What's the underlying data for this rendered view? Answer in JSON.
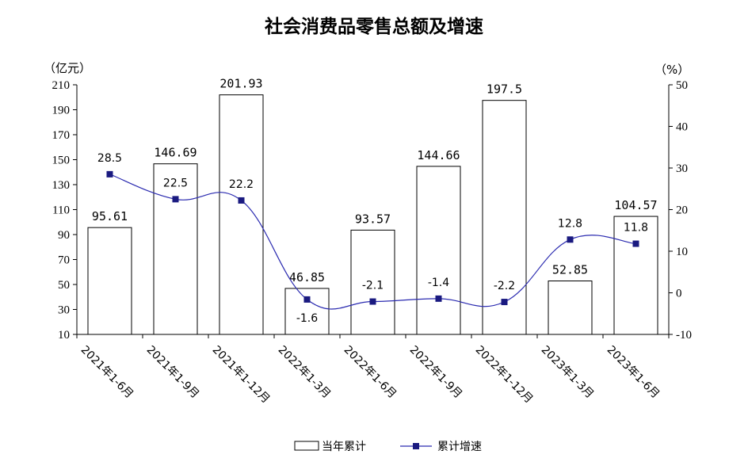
{
  "chart_data": {
    "type": "bar+line",
    "title": "社会消费品零售总额及增速",
    "categories": [
      "2021年1-6月",
      "2021年1-9月",
      "2021年1-12月",
      "2022年1-3月",
      "2022年1-6月",
      "2022年1-9月",
      "2022年1-12月",
      "2023年1-3月",
      "2023年1-6月"
    ],
    "series": [
      {
        "name": "当年累计",
        "type": "bar",
        "axis": "left",
        "values": [
          95.61,
          146.69,
          201.93,
          46.85,
          93.57,
          144.66,
          197.5,
          52.85,
          104.57
        ],
        "labels": [
          "95.61",
          "146.69",
          "201.93",
          "46.85",
          "93.57",
          "144.66",
          "197.5",
          "52.85",
          "104.57"
        ]
      },
      {
        "name": "累计增速",
        "type": "line",
        "axis": "right",
        "values": [
          28.5,
          22.5,
          22.2,
          -1.6,
          -2.1,
          -1.4,
          -2.2,
          12.8,
          11.8
        ],
        "labels": [
          "28.5",
          "22.5",
          "22.2",
          "-1.6",
          "-2.1",
          "-1.4",
          "-2.2",
          "12.8",
          "11.8"
        ]
      }
    ],
    "y_left": {
      "unit": "（亿元）",
      "min": 10,
      "max": 210,
      "ticks": [
        "10",
        "30",
        "50",
        "70",
        "90",
        "110",
        "130",
        "150",
        "170",
        "190",
        "210"
      ]
    },
    "y_right": {
      "unit": "（%）",
      "min": -10,
      "max": 50,
      "ticks": [
        "-10",
        "0",
        "10",
        "20",
        "30",
        "40",
        "50"
      ]
    },
    "grid": false,
    "legend_position": "bottom",
    "colors": {
      "bar_fill": "#ffffff",
      "bar_stroke": "#000000",
      "line": "#2b2bb0",
      "marker": "#1a1a80"
    }
  }
}
